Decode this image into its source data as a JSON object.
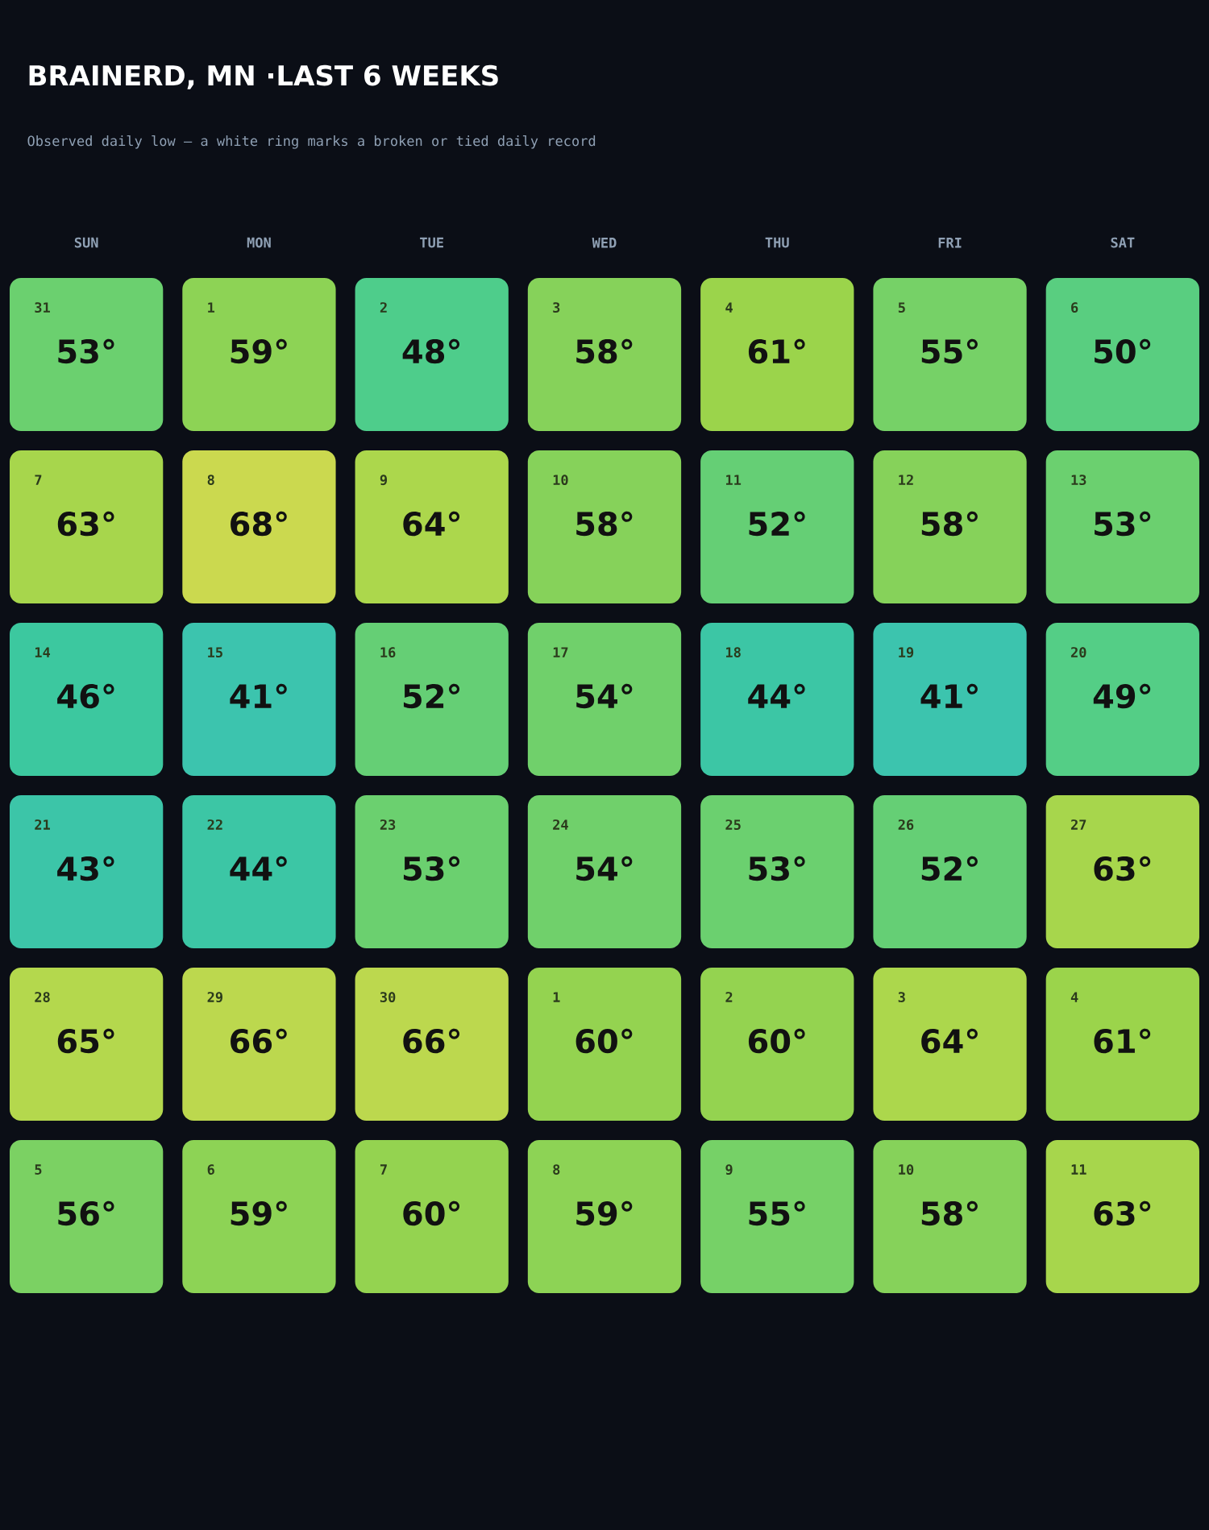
{
  "chart_data": {
    "type": "heatmap",
    "title": "BRAINERD, MN ·LAST 6 WEEKS",
    "subtitle": "Observed daily low — a white ring marks a broken or tied daily record",
    "categories": [
      "SUN",
      "MON",
      "TUE",
      "WED",
      "THU",
      "FRI",
      "SAT"
    ],
    "y_categories": [
      null,
      null,
      null,
      null,
      null,
      null
    ],
    "cells": [
      [
        53,
        59,
        48,
        58,
        61,
        55,
        50
      ],
      [
        63,
        68,
        64,
        58,
        52,
        58,
        53
      ],
      [
        46,
        41,
        52,
        54,
        44,
        41,
        49
      ],
      [
        43,
        44,
        53,
        54,
        53,
        52,
        63
      ],
      [
        65,
        66,
        66,
        60,
        60,
        64,
        61
      ],
      [
        56,
        59,
        60,
        59,
        55,
        58,
        63
      ]
    ],
    "cell_labels": [
      [
        "53°",
        "59°",
        "48°",
        "58°",
        "61°",
        "55°",
        "50°"
      ],
      [
        "63°",
        "68°",
        "64°",
        "58°",
        "52°",
        "58°",
        "53°"
      ],
      [
        "46°",
        "41°",
        "52°",
        "54°",
        "44°",
        "41°",
        "49°"
      ],
      [
        "43°",
        "44°",
        "53°",
        "54°",
        "53°",
        "52°",
        "63°"
      ],
      [
        "65°",
        "66°",
        "66°",
        "60°",
        "60°",
        "64°",
        "61°"
      ],
      [
        "56°",
        "59°",
        "60°",
        "59°",
        "55°",
        "58°",
        "63°"
      ]
    ],
    "annotations": [
      "31",
      "1",
      "2",
      "3",
      "4",
      "5",
      "6",
      "7",
      "8",
      "9",
      "10",
      "11",
      "12",
      "13",
      "14",
      "15",
      "16",
      "17",
      "18",
      "19",
      "20",
      "21",
      "22",
      "23",
      "24",
      "25",
      "26",
      "27",
      "28",
      "29",
      "30",
      "1",
      "2",
      "3",
      "4",
      "5",
      "6",
      "7",
      "8",
      "9",
      "10",
      "11"
    ]
  }
}
